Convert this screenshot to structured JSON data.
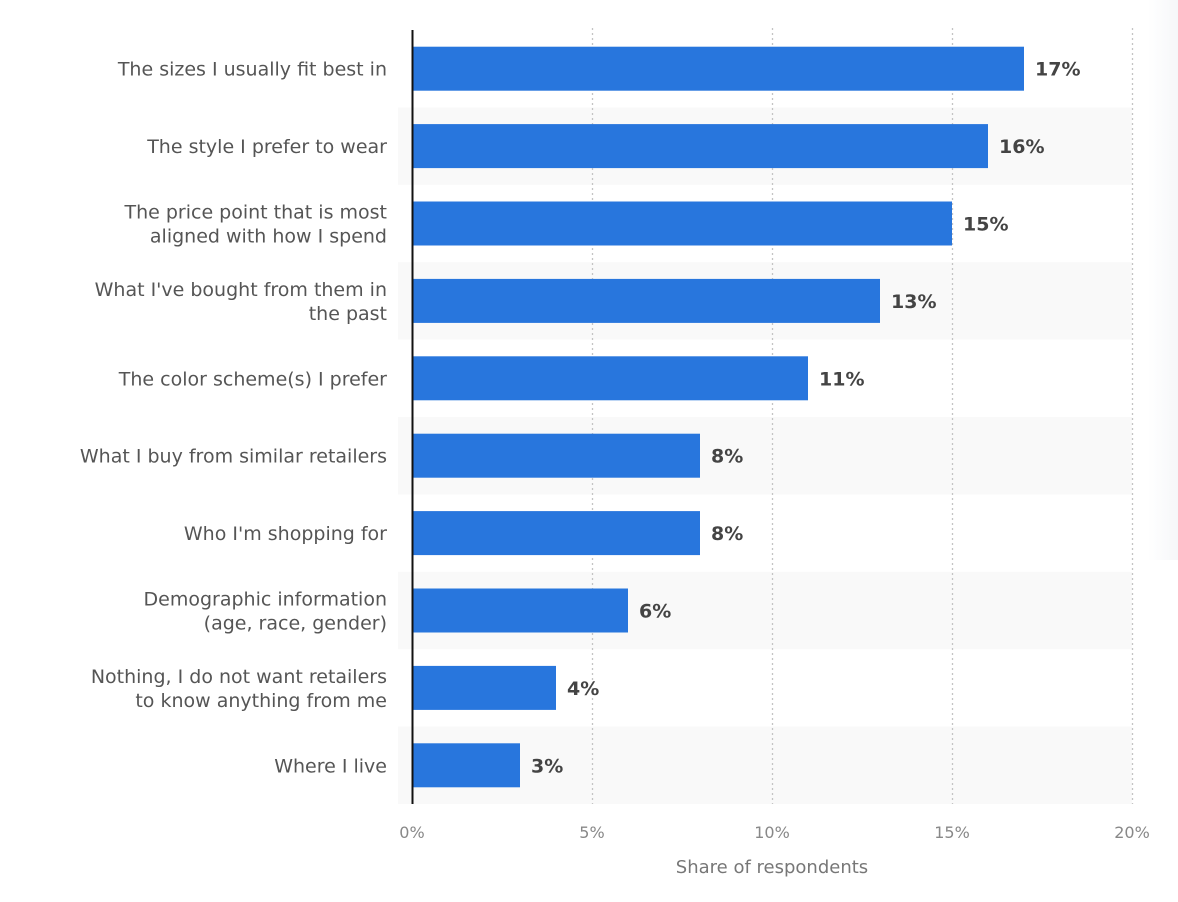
{
  "chart_data": {
    "type": "bar",
    "orientation": "horizontal",
    "categories": [
      [
        "The sizes I usually fit best in"
      ],
      [
        "The style I prefer to wear"
      ],
      [
        "The price point that is most",
        "aligned with how I spend"
      ],
      [
        "What I've bought from them in",
        "the past"
      ],
      [
        "The color scheme(s) I prefer"
      ],
      [
        "What I buy from similar retailers"
      ],
      [
        "Who I'm shopping for"
      ],
      [
        "Demographic information",
        "(age, race, gender)"
      ],
      [
        "Nothing, I do not want retailers",
        "to know anything from me"
      ],
      [
        "Where I live"
      ]
    ],
    "values": [
      17,
      16,
      15,
      13,
      11,
      8,
      8,
      6,
      4,
      3
    ],
    "value_labels": [
      "17%",
      "16%",
      "15%",
      "13%",
      "11%",
      "8%",
      "8%",
      "6%",
      "4%",
      "3%"
    ],
    "xlabel": "Share of respondents",
    "xlim": [
      0,
      20
    ],
    "xticks": [
      0,
      5,
      10,
      15,
      20
    ],
    "xtick_labels": [
      "0%",
      "5%",
      "10%",
      "15%",
      "20%"
    ],
    "grid": "vertical dotted",
    "bar_color": "#2876dd",
    "band_color": "#f9f9f9"
  }
}
